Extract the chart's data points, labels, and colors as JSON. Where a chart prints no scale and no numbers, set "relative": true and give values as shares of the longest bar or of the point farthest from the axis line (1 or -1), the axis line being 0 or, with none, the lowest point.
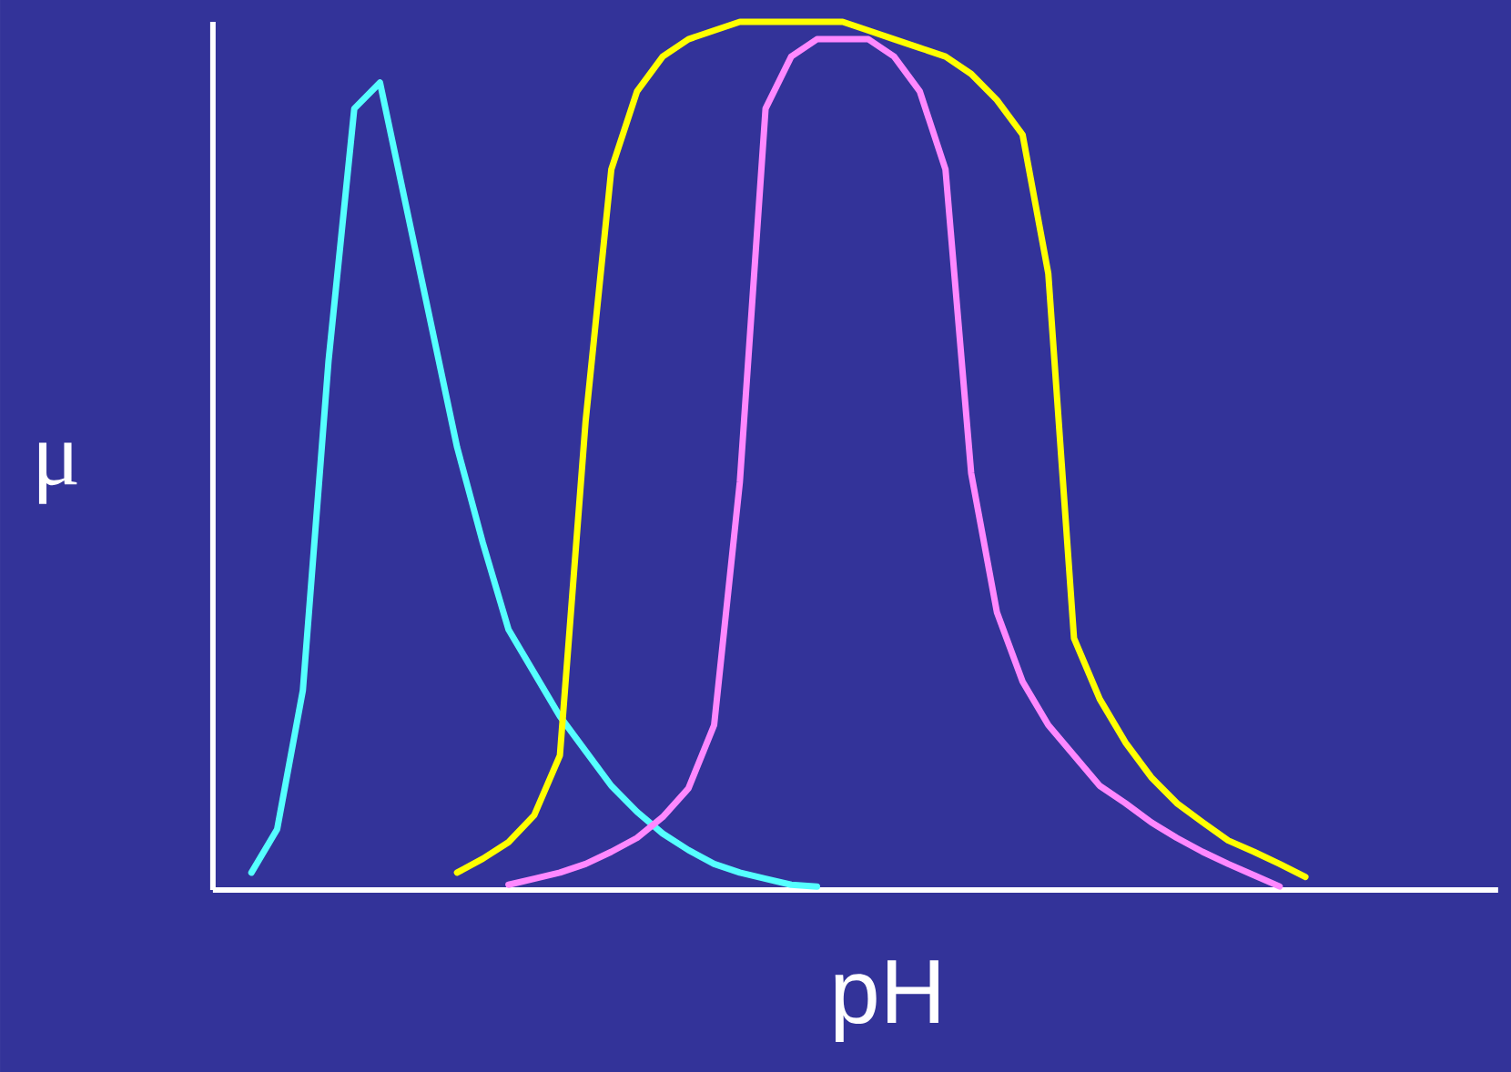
{
  "chart_data": {
    "type": "line",
    "relative": true,
    "xlabel": "pH",
    "ylabel": "μ",
    "marker": "none",
    "line_style": "solid",
    "categories": [
      null,
      null,
      null,
      null,
      null,
      null,
      null,
      null,
      null,
      null,
      null,
      null,
      null,
      null,
      null,
      null,
      null,
      null,
      null,
      null,
      null,
      null,
      null,
      null,
      null,
      null,
      null,
      null,
      null,
      null,
      null,
      null,
      null,
      null,
      null,
      null,
      null,
      null,
      null,
      null,
      null,
      null,
      null,
      null,
      null,
      null,
      null,
      null,
      null,
      null
    ],
    "series": [
      {
        "color": "#55ffff",
        "values": [
          null,
          0.02,
          0.07,
          0.23,
          0.61,
          0.9,
          0.93,
          0.79,
          0.65,
          0.51,
          0.4,
          0.3,
          0.25,
          0.2,
          0.16,
          0.12,
          0.09,
          0.065,
          0.046,
          0.03,
          0.02,
          0.013,
          0.006,
          0.004,
          null,
          null,
          null,
          null,
          null,
          null,
          null,
          null,
          null,
          null,
          null,
          null,
          null,
          null,
          null,
          null,
          null,
          null,
          null,
          null,
          null,
          null,
          null,
          null,
          null,
          null
        ]
      },
      {
        "color": "#ffff00",
        "values": [
          null,
          null,
          null,
          null,
          null,
          null,
          null,
          null,
          null,
          0.02,
          0.036,
          0.055,
          0.086,
          0.155,
          0.54,
          0.83,
          0.92,
          0.96,
          0.98,
          0.99,
          1.0,
          1.0,
          1.0,
          1.0,
          1.0,
          0.99,
          0.98,
          0.97,
          0.96,
          0.94,
          0.91,
          0.87,
          0.71,
          0.29,
          0.22,
          0.17,
          0.13,
          0.1,
          0.078,
          0.057,
          0.044,
          0.03,
          0.015,
          null,
          null,
          null,
          null,
          null,
          null,
          null
        ]
      },
      {
        "color": "#ff88ff",
        "values": [
          null,
          null,
          null,
          null,
          null,
          null,
          null,
          null,
          null,
          null,
          null,
          0.006,
          0.013,
          0.02,
          0.03,
          0.044,
          0.06,
          0.084,
          0.117,
          0.19,
          0.47,
          0.9,
          0.96,
          0.98,
          0.98,
          0.98,
          0.96,
          0.92,
          0.83,
          0.48,
          0.32,
          0.24,
          0.19,
          0.155,
          0.12,
          0.1,
          0.078,
          0.06,
          0.044,
          0.03,
          0.017,
          0.004,
          null,
          null,
          null,
          null,
          null,
          null,
          null,
          null
        ]
      }
    ]
  }
}
